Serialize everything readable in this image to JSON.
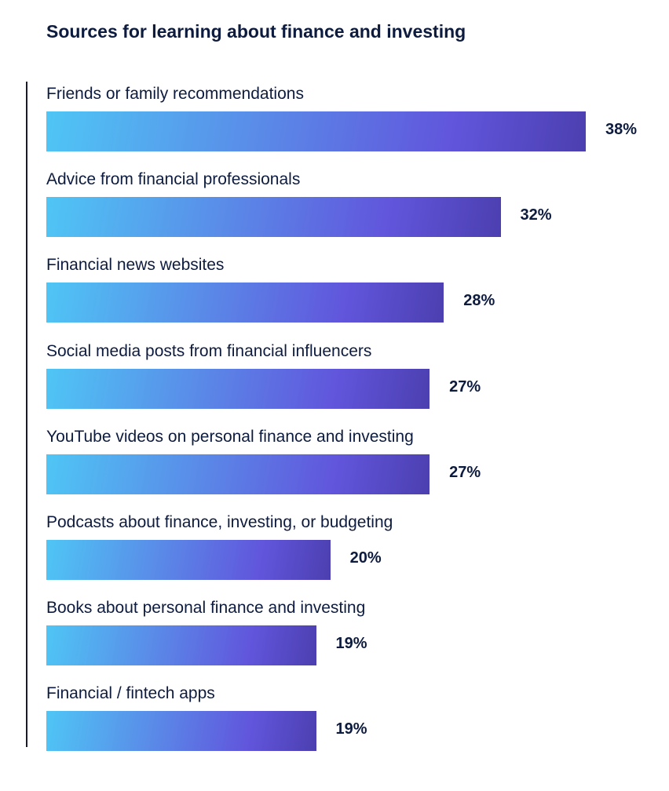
{
  "chart_data": {
    "type": "bar",
    "orientation": "horizontal",
    "title": "Sources for learning about finance and investing",
    "categories": [
      "Friends or family recommendations",
      "Advice from financial professionals",
      "Financial news websites",
      "Social media posts from financial influencers",
      "YouTube videos on personal finance and investing",
      "Podcasts about finance, investing, or budgeting",
      "Books about personal finance and investing",
      "Financial / fintech apps"
    ],
    "values": [
      38,
      32,
      28,
      27,
      27,
      20,
      19,
      19
    ],
    "value_labels": [
      "38%",
      "32%",
      "28%",
      "27%",
      "27%",
      "20%",
      "19%",
      "19%"
    ],
    "xlim": [
      0,
      38
    ],
    "grid": false,
    "colors": {
      "gradient_start": "#4fc6f5",
      "gradient_end": "#4c3fb0",
      "text": "#0d1b3e"
    }
  }
}
